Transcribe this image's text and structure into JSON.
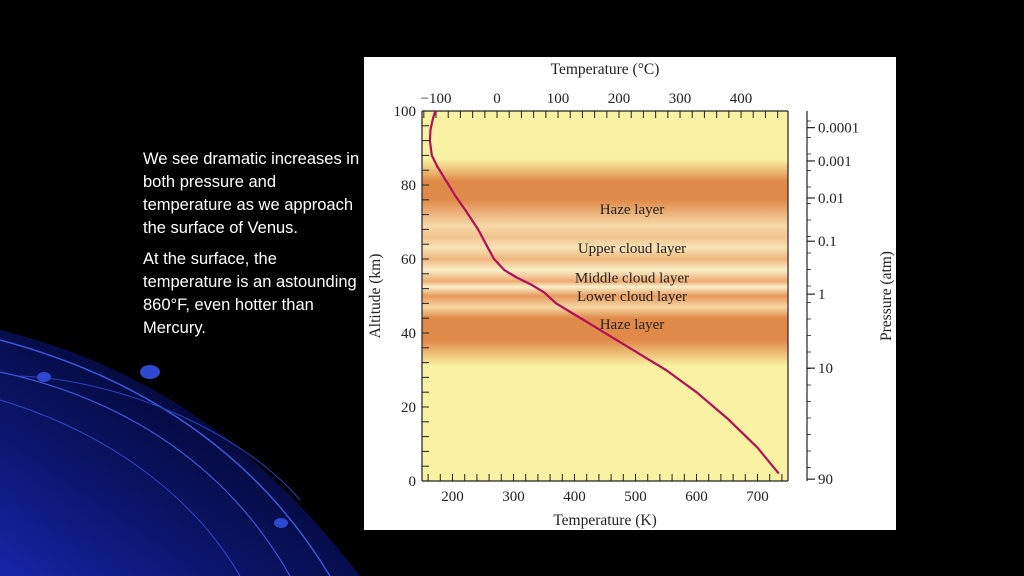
{
  "slide": {
    "paragraphs": [
      "We see dramatic increases in both pressure and temperature as we approach the surface of Venus.",
      "At the surface, the temperature is an astounding 860°F, even hotter than Mercury."
    ]
  },
  "colors": {
    "background": "#000000",
    "swirl": "#0a1a9c",
    "panel": "#f9f2a2",
    "band": "#e08a4a",
    "curve": "#b0105a"
  },
  "chart_data": {
    "type": "line",
    "title": "",
    "xlabel": "Temperature (K)",
    "ylabel": "Altitude (km)",
    "top_xlabel": "Temperature (°C)",
    "right_ylabel": "Pressure (atm)",
    "xlim": [
      150,
      750
    ],
    "ylim": [
      0,
      100
    ],
    "x_ticks": [
      200,
      300,
      400,
      500,
      600,
      700
    ],
    "y_ticks": [
      0,
      20,
      40,
      60,
      80,
      100
    ],
    "top_ticks": [
      -100,
      0,
      100,
      200,
      300,
      400
    ],
    "pressure_ticks": [
      {
        "label": "0.0001",
        "altitude": 95.5
      },
      {
        "label": "0.001",
        "altitude": 86.5
      },
      {
        "label": "0.01",
        "altitude": 76.5
      },
      {
        "label": "0.1",
        "altitude": 64.8
      },
      {
        "label": "1",
        "altitude": 50.5
      },
      {
        "label": "10",
        "altitude": 30.5
      },
      {
        "label": "90",
        "altitude": 0.5
      }
    ],
    "layers": [
      {
        "name": "Haze layer",
        "altitude": 73.5
      },
      {
        "name": "Upper cloud layer",
        "altitude": 63
      },
      {
        "name": "Middle cloud layer",
        "altitude": 55
      },
      {
        "name": "Lower cloud layer",
        "altitude": 50
      },
      {
        "name": "Haze layer",
        "altitude": 42.5
      }
    ],
    "series": [
      {
        "x": [
          172,
          168,
          164,
          163,
          166,
          175,
          190,
          205,
          222,
          242,
          255,
          268,
          285,
          305,
          330,
          350,
          370,
          400,
          430,
          460,
          490,
          520,
          550,
          600,
          650,
          700,
          735
        ],
        "y": [
          100,
          98,
          95,
          92,
          88,
          85,
          81,
          77,
          73,
          68,
          64,
          60,
          57,
          55,
          53,
          51,
          48,
          45,
          42,
          39,
          36,
          33,
          30,
          24,
          17,
          9,
          2
        ]
      }
    ]
  }
}
